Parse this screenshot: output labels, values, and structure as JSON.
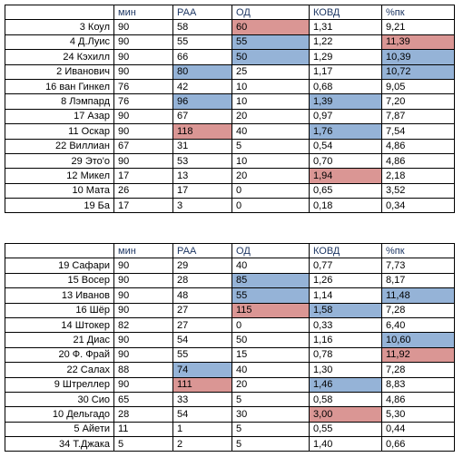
{
  "tables": [
    {
      "header": [
        "",
        "мин",
        "РАА",
        "ОД",
        "КОВД",
        "%пк"
      ],
      "rows": [
        {
          "cells": [
            "3 Коул",
            "90",
            "58",
            "60",
            "1,31",
            "9,21"
          ],
          "highlight": [
            [
              3,
              "#da9694"
            ]
          ]
        },
        {
          "cells": [
            "4 Д.Луис",
            "90",
            "55",
            "55",
            "1,22",
            "11,39"
          ],
          "highlight": [
            [
              3,
              "#95b3d7"
            ],
            [
              5,
              "#da9694"
            ]
          ]
        },
        {
          "cells": [
            "24 Кэхилл",
            "90",
            "66",
            "50",
            "1,29",
            "10,39"
          ],
          "highlight": [
            [
              3,
              "#95b3d7"
            ],
            [
              5,
              "#95b3d7"
            ]
          ]
        },
        {
          "cells": [
            "2 Иванович",
            "90",
            "80",
            "25",
            "1,17",
            "10,72"
          ],
          "highlight": [
            [
              2,
              "#95b3d7"
            ],
            [
              5,
              "#95b3d7"
            ]
          ]
        },
        {
          "cells": [
            "16 ван Гинкел",
            "76",
            "42",
            "10",
            "0,68",
            "9,05"
          ],
          "highlight": []
        },
        {
          "cells": [
            "8 Лэмпард",
            "76",
            "96",
            "10",
            "1,39",
            "7,20"
          ],
          "highlight": [
            [
              2,
              "#95b3d7"
            ],
            [
              4,
              "#95b3d7"
            ]
          ]
        },
        {
          "cells": [
            "17 Азар",
            "90",
            "67",
            "20",
            "0,97",
            "7,87"
          ],
          "highlight": []
        },
        {
          "cells": [
            "11 Оскар",
            "90",
            "118",
            "40",
            "1,76",
            "7,54"
          ],
          "highlight": [
            [
              2,
              "#da9694"
            ],
            [
              4,
              "#95b3d7"
            ]
          ]
        },
        {
          "cells": [
            "22 Виллиан",
            "67",
            "31",
            "5",
            "0,54",
            "4,86"
          ],
          "highlight": []
        },
        {
          "cells": [
            "29 Это'о",
            "90",
            "53",
            "10",
            "0,70",
            "4,86"
          ],
          "highlight": []
        },
        {
          "cells": [
            "12 Микел",
            "17",
            "13",
            "20",
            "1,94",
            "2,18"
          ],
          "highlight": [
            [
              4,
              "#da9694"
            ]
          ]
        },
        {
          "cells": [
            "10 Мата",
            "26",
            "17",
            "0",
            "0,65",
            "3,52"
          ],
          "highlight": []
        },
        {
          "cells": [
            "19 Ба",
            "17",
            "3",
            "0",
            "0,18",
            "0,34"
          ],
          "highlight": []
        }
      ]
    },
    {
      "header": [
        "",
        "мин",
        "РАА",
        "ОД",
        "КОВД",
        "%пк"
      ],
      "rows": [
        {
          "cells": [
            "19 Сафари",
            "90",
            "29",
            "40",
            "0,77",
            "7,73"
          ],
          "highlight": []
        },
        {
          "cells": [
            "15 Восер",
            "90",
            "28",
            "85",
            "1,26",
            "8,17"
          ],
          "highlight": [
            [
              3,
              "#95b3d7"
            ]
          ]
        },
        {
          "cells": [
            "13 Иванов",
            "90",
            "48",
            "55",
            "1,14",
            "11,48"
          ],
          "highlight": [
            [
              3,
              "#95b3d7"
            ],
            [
              5,
              "#95b3d7"
            ]
          ]
        },
        {
          "cells": [
            "16 Шёр",
            "90",
            "27",
            "115",
            "1,58",
            "7,28"
          ],
          "highlight": [
            [
              3,
              "#da9694"
            ],
            [
              4,
              "#95b3d7"
            ]
          ]
        },
        {
          "cells": [
            "14 Штокер",
            "82",
            "27",
            "0",
            "0,33",
            "6,40"
          ],
          "highlight": []
        },
        {
          "cells": [
            "21 Диас",
            "90",
            "54",
            "50",
            "1,16",
            "10,60"
          ],
          "highlight": [
            [
              5,
              "#95b3d7"
            ]
          ]
        },
        {
          "cells": [
            "20 Ф. Фрай",
            "90",
            "55",
            "15",
            "0,78",
            "11,92"
          ],
          "highlight": [
            [
              5,
              "#da9694"
            ]
          ]
        },
        {
          "cells": [
            "22 Салах",
            "88",
            "74",
            "40",
            "1,30",
            "7,28"
          ],
          "highlight": [
            [
              2,
              "#95b3d7"
            ]
          ]
        },
        {
          "cells": [
            "9 Штреллер",
            "90",
            "111",
            "20",
            "1,46",
            "8,83"
          ],
          "highlight": [
            [
              2,
              "#da9694"
            ],
            [
              4,
              "#95b3d7"
            ]
          ]
        },
        {
          "cells": [
            "30 Сио",
            "65",
            "33",
            "5",
            "0,58",
            "4,86"
          ],
          "highlight": []
        },
        {
          "cells": [
            "10 Дельгадо",
            "28",
            "54",
            "30",
            "3,00",
            "5,30"
          ],
          "highlight": [
            [
              4,
              "#da9694"
            ]
          ]
        },
        {
          "cells": [
            "5 Айети",
            "11",
            "1",
            "5",
            "0,55",
            "0,44"
          ],
          "highlight": []
        },
        {
          "cells": [
            "34 Т.Джака",
            "5",
            "2",
            "5",
            "1,40",
            "0,66"
          ],
          "highlight": []
        }
      ]
    }
  ]
}
